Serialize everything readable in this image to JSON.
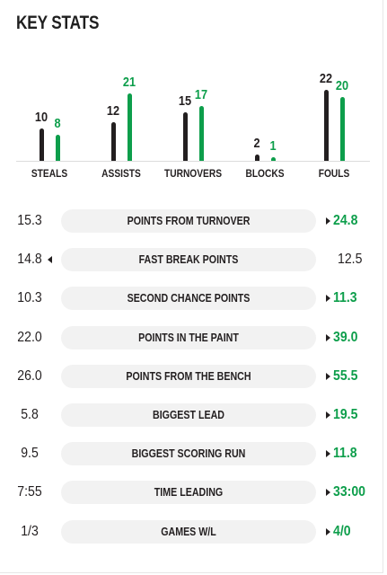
{
  "title": "KEY STATS",
  "chart_data": {
    "type": "bar",
    "categories": [
      "STEALS",
      "ASSISTS",
      "TURNOVERS",
      "BLOCKS",
      "FOULS"
    ],
    "series": [
      {
        "values": [
          10,
          12,
          15,
          2,
          22
        ],
        "color": "#231f20"
      },
      {
        "values": [
          8,
          21,
          17,
          1,
          20
        ],
        "color": "#0d9e4b"
      }
    ],
    "value_labels_dark": [
      "10",
      "12",
      "15",
      "2",
      "22"
    ],
    "value_labels_green": [
      "8",
      "21",
      "17",
      "1",
      "20"
    ],
    "grid": false
  },
  "stats": [
    {
      "label": "POINTS FROM TURNOVER",
      "left": "15.3",
      "right": "24.8",
      "leader": "right"
    },
    {
      "label": "FAST BREAK POINTS",
      "left": "14.8",
      "right": "12.5",
      "leader": "left"
    },
    {
      "label": "SECOND CHANCE POINTS",
      "left": "10.3",
      "right": "11.3",
      "leader": "right"
    },
    {
      "label": "POINTS IN THE PAINT",
      "left": "22.0",
      "right": "39.0",
      "leader": "right"
    },
    {
      "label": "POINTS FROM THE BENCH",
      "left": "26.0",
      "right": "55.5",
      "leader": "right"
    },
    {
      "label": "BIGGEST LEAD",
      "left": "5.8",
      "right": "19.5",
      "leader": "right"
    },
    {
      "label": "BIGGEST SCORING RUN",
      "left": "9.5",
      "right": "11.8",
      "leader": "right"
    },
    {
      "label": "TIME LEADING",
      "left": "7:55",
      "right": "33:00",
      "leader": "right"
    },
    {
      "label": "GAMES W/L",
      "left": "1/3",
      "right": "4/0",
      "leader": "right"
    }
  ],
  "colors": {
    "dark": "#231f20",
    "green": "#0d9e4b",
    "pill": "#f2f2f2"
  }
}
